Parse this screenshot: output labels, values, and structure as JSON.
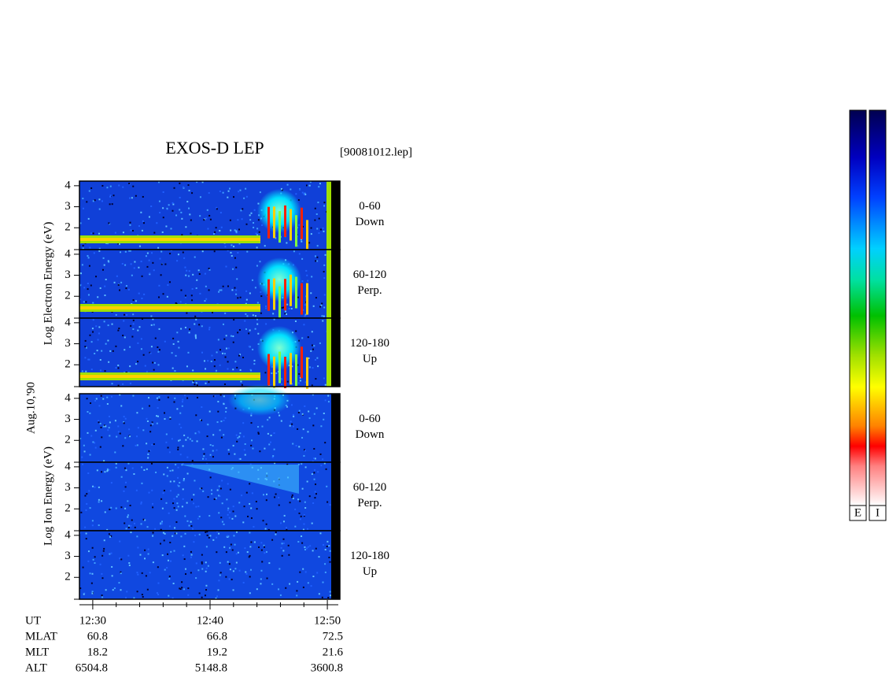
{
  "title": "EXOS-D LEP",
  "file": "[90081012.lep]",
  "date": "Aug.10,'90",
  "electron_ylabel": "Log  Electron  Energy (eV)",
  "ion_ylabel": "Log  Ion  Energy (eV)",
  "colorbars": [
    "E",
    "I"
  ],
  "time_axis": {
    "label": "UT",
    "xlim": [
      "12:28:52",
      "12:50:56"
    ],
    "xticks": [
      "12:30",
      "12:40",
      "12:50"
    ],
    "xminorticks": [
      "12:32",
      "12:34",
      "12:36",
      "12:38",
      "12:42",
      "12:44",
      "12:46",
      "12:48"
    ]
  },
  "orbit": [
    {
      "label": "MLAT",
      "values": [
        60.8,
        66.8,
        72.5
      ]
    },
    {
      "label": "MLT",
      "values": [
        18.2,
        19.2,
        21.6
      ]
    },
    {
      "label": "ALT",
      "values": [
        6504.8,
        5148.8,
        3600.8
      ]
    }
  ],
  "chart_data": [
    {
      "type": "spectrogram",
      "species": "electron",
      "label": [
        "0-60",
        "Down"
      ],
      "ylim": [
        0.96,
        4.22
      ],
      "yticks": [
        2,
        3,
        4
      ]
    },
    {
      "type": "spectrogram",
      "species": "electron",
      "label": [
        "60-120",
        "Perp."
      ],
      "ylim": [
        0.96,
        4.22
      ],
      "yticks": [
        2,
        3,
        4
      ]
    },
    {
      "type": "spectrogram",
      "species": "electron",
      "label": [
        "120-180",
        "Up"
      ],
      "ylim": [
        0.96,
        4.22
      ],
      "yticks": [
        2,
        3,
        4
      ]
    },
    {
      "type": "spectrogram",
      "species": "ion",
      "label": [
        "0-60",
        "Down"
      ],
      "ylim": [
        0.96,
        4.22
      ],
      "yticks": [
        2,
        3,
        4
      ]
    },
    {
      "type": "spectrogram",
      "species": "ion",
      "label": [
        "60-120",
        "Perp."
      ],
      "ylim": [
        0.96,
        4.22
      ],
      "yticks": [
        2,
        3,
        4
      ]
    },
    {
      "type": "spectrogram",
      "species": "ion",
      "label": [
        "120-180",
        "Up"
      ],
      "ylim": [
        0.96,
        4.22
      ],
      "yticks": [
        2,
        3,
        4
      ]
    }
  ]
}
